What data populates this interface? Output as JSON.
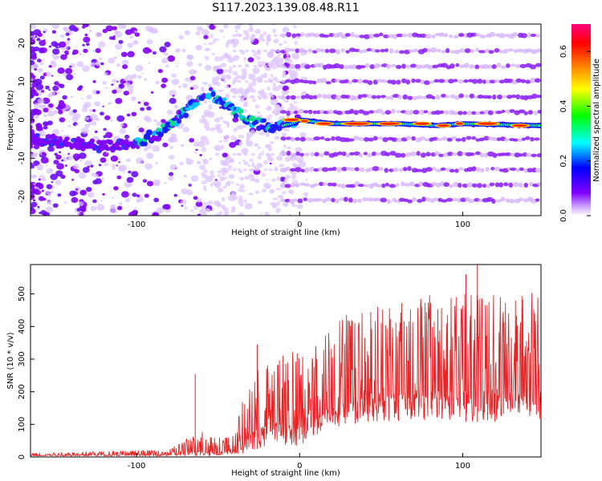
{
  "title": "S117.2023.139.08.48.R11",
  "chart_data": [
    {
      "type": "heatmap",
      "xlabel": "Height of straight line (km)",
      "ylabel": "Frequency (Hz)",
      "xlim": [
        -165,
        148
      ],
      "ylim": [
        -25,
        25
      ],
      "xticks": [
        -100,
        0,
        100
      ],
      "yticks": [
        -20,
        -10,
        0,
        10,
        20
      ],
      "colorbar": {
        "label": "Normalized spectral amplitude",
        "range": [
          0,
          0.7
        ],
        "ticks": [
          0.0,
          0.2,
          0.4,
          0.6
        ],
        "colors": [
          "#ffffff",
          "#d4b3ff",
          "#7f00ff",
          "#0000ff",
          "#00ffff",
          "#00ff00",
          "#ffff00",
          "#ff8000",
          "#ff0000",
          "#ff0080"
        ]
      },
      "features": {
        "main_trace": [
          {
            "x": -165,
            "y": -5
          },
          {
            "x": -140,
            "y": -6
          },
          {
            "x": -120,
            "y": -7
          },
          {
            "x": -100,
            "y": -6
          },
          {
            "x": -85,
            "y": -3
          },
          {
            "x": -75,
            "y": 0
          },
          {
            "x": -65,
            "y": 4
          },
          {
            "x": -55,
            "y": 7
          },
          {
            "x": -45,
            "y": 4
          },
          {
            "x": -35,
            "y": 1
          },
          {
            "x": -25,
            "y": -1
          },
          {
            "x": -15,
            "y": -2
          },
          {
            "x": -5,
            "y": -1
          },
          {
            "x": 0,
            "y": 0
          },
          {
            "x": 20,
            "y": -1
          },
          {
            "x": 60,
            "y": -1
          },
          {
            "x": 85,
            "y": -1.5
          },
          {
            "x": 100,
            "y": -1
          },
          {
            "x": 148,
            "y": -1.5
          }
        ],
        "harmonic_bands_hz": [
          -21,
          -17,
          -13,
          -9,
          -5,
          2,
          6,
          10,
          14,
          18,
          22
        ],
        "harmonic_band_start_km": -10
      }
    },
    {
      "type": "line",
      "xlabel": "Height of straight line (km)",
      "ylabel": "SNR (10 * v/v)",
      "xlim": [
        -165,
        148
      ],
      "ylim": [
        0,
        590
      ],
      "xticks": [
        -100,
        0,
        100
      ],
      "yticks": [
        0,
        100,
        200,
        300,
        400,
        500
      ],
      "color": "#ee2222",
      "envelope_lower": [
        {
          "x": -165,
          "y": 3
        },
        {
          "x": -60,
          "y": 3
        },
        {
          "x": -37,
          "y": 5
        },
        {
          "x": -30,
          "y": 20
        },
        {
          "x": -15,
          "y": 40
        },
        {
          "x": 0,
          "y": 30
        },
        {
          "x": 10,
          "y": 65
        },
        {
          "x": 25,
          "y": 90
        },
        {
          "x": 40,
          "y": 108
        },
        {
          "x": 80,
          "y": 112
        },
        {
          "x": 108,
          "y": 108
        },
        {
          "x": 148,
          "y": 112
        }
      ],
      "envelope_upper": [
        {
          "x": -165,
          "y": 12
        },
        {
          "x": -80,
          "y": 22
        },
        {
          "x": -68,
          "y": 60
        },
        {
          "x": -60,
          "y": 80
        },
        {
          "x": -50,
          "y": 60
        },
        {
          "x": -40,
          "y": 70
        },
        {
          "x": -35,
          "y": 170
        },
        {
          "x": -25,
          "y": 280
        },
        {
          "x": -10,
          "y": 320
        },
        {
          "x": 0,
          "y": 330
        },
        {
          "x": 15,
          "y": 380
        },
        {
          "x": 30,
          "y": 450
        },
        {
          "x": 60,
          "y": 490
        },
        {
          "x": 90,
          "y": 500
        },
        {
          "x": 148,
          "y": 505
        }
      ],
      "peaks": [
        {
          "x": -64,
          "y": 255
        },
        {
          "x": -26,
          "y": 345
        },
        {
          "x": 102,
          "y": 560
        },
        {
          "x": 109,
          "y": 590
        }
      ]
    }
  ]
}
